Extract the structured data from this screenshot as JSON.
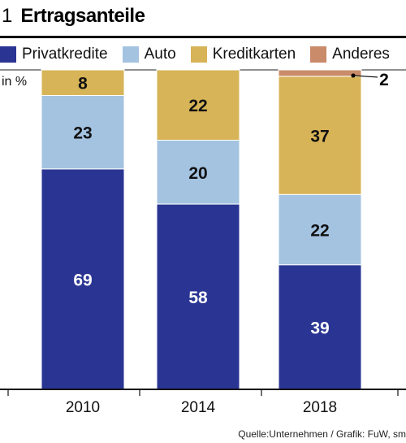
{
  "figure": {
    "number": "1",
    "title": "Ertragsanteile",
    "unit": "in %",
    "source": "Quelle:Unternehmen / Grafik: FuW, sm"
  },
  "colors": {
    "Privatkredite": "#2a3593",
    "Auto": "#a4c3e1",
    "Kreditkarten": "#d7b457",
    "Anderes": "#c98b69"
  },
  "chart_data": {
    "type": "bar",
    "stacked": true,
    "categories": [
      "2010",
      "2014",
      "2018"
    ],
    "series": [
      {
        "name": "Privatkredite",
        "values": [
          69,
          58,
          39
        ]
      },
      {
        "name": "Auto",
        "values": [
          23,
          20,
          22
        ]
      },
      {
        "name": "Kreditkarten",
        "values": [
          8,
          22,
          37
        ]
      },
      {
        "name": "Anderes",
        "values": [
          0,
          0,
          2
        ]
      }
    ],
    "data_labels": [
      [
        "69",
        "23",
        "8",
        ""
      ],
      [
        "58",
        "20",
        "22",
        ""
      ],
      [
        "39",
        "22",
        "37",
        "2"
      ]
    ],
    "ylim": [
      0,
      100
    ],
    "ylabel": "in %",
    "legend_position": "top",
    "grid": false
  }
}
